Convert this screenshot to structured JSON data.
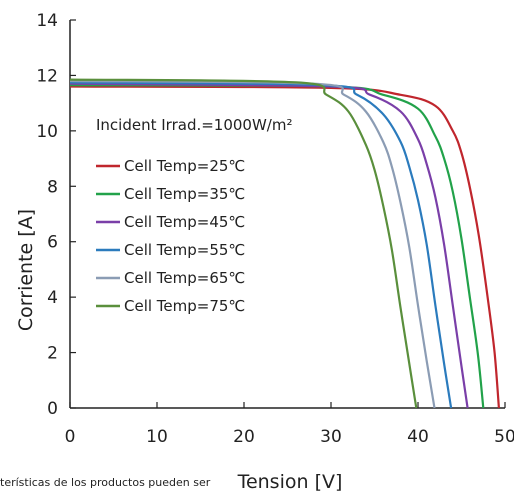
{
  "chart_data": {
    "type": "line",
    "xlabel": "Tension [V]",
    "ylabel": "Corriente [A]",
    "xlim": [
      0,
      50
    ],
    "ylim": [
      0,
      14
    ],
    "x_ticks": [
      0,
      10,
      20,
      30,
      40,
      50
    ],
    "y_ticks": [
      0,
      2,
      4,
      6,
      8,
      10,
      12,
      14
    ],
    "grid": false,
    "annotation": "Incident Irrad.=1000W/m²",
    "legend_position": "center-left",
    "series": [
      {
        "name": "Cell Temp=25℃",
        "color": "#c0262d",
        "x": [
          0,
          30,
          38,
          42,
          44,
          45,
          46,
          47,
          48,
          48.8,
          49.3
        ],
        "y": [
          11.6,
          11.55,
          11.3,
          10.9,
          10.0,
          9.2,
          7.9,
          6.2,
          4.0,
          2.0,
          0
        ]
      },
      {
        "name": "Cell Temp=35℃",
        "color": "#22a24a",
        "x": [
          0,
          30,
          36,
          40,
          42,
          43,
          44,
          45,
          46,
          46.9,
          47.5
        ],
        "y": [
          11.65,
          11.6,
          11.3,
          10.8,
          9.8,
          9.0,
          7.8,
          6.1,
          3.9,
          1.9,
          0
        ]
      },
      {
        "name": "Cell Temp=45℃",
        "color": "#7a3fa8",
        "x": [
          0,
          30,
          34.5,
          38,
          40,
          41,
          42,
          43,
          44,
          45,
          45.7
        ],
        "y": [
          11.7,
          11.6,
          11.3,
          10.7,
          9.7,
          8.8,
          7.6,
          5.9,
          3.7,
          1.5,
          0
        ]
      },
      {
        "name": "Cell Temp=55℃",
        "color": "#2b7bbd",
        "x": [
          0,
          29,
          33,
          36,
          38,
          39,
          40,
          41,
          42,
          43,
          43.8
        ],
        "y": [
          11.75,
          11.65,
          11.3,
          10.6,
          9.6,
          8.7,
          7.5,
          5.9,
          3.7,
          1.6,
          0
        ]
      },
      {
        "name": "Cell Temp=65℃",
        "color": "#8b9cb4",
        "x": [
          0,
          28,
          31.5,
          34,
          36,
          37,
          38,
          39,
          40,
          41,
          41.9
        ],
        "y": [
          11.8,
          11.7,
          11.3,
          10.7,
          9.6,
          8.7,
          7.4,
          5.8,
          3.7,
          1.7,
          0
        ]
      },
      {
        "name": "Cell Temp=75℃",
        "color": "#5a8f3c",
        "x": [
          0,
          26,
          29.5,
          32,
          34,
          35,
          36,
          37,
          38,
          39,
          39.8
        ],
        "y": [
          11.85,
          11.75,
          11.3,
          10.7,
          9.5,
          8.6,
          7.3,
          5.7,
          3.6,
          1.6,
          0
        ]
      }
    ]
  },
  "footer_text": "terísticas de los productos pueden ser"
}
